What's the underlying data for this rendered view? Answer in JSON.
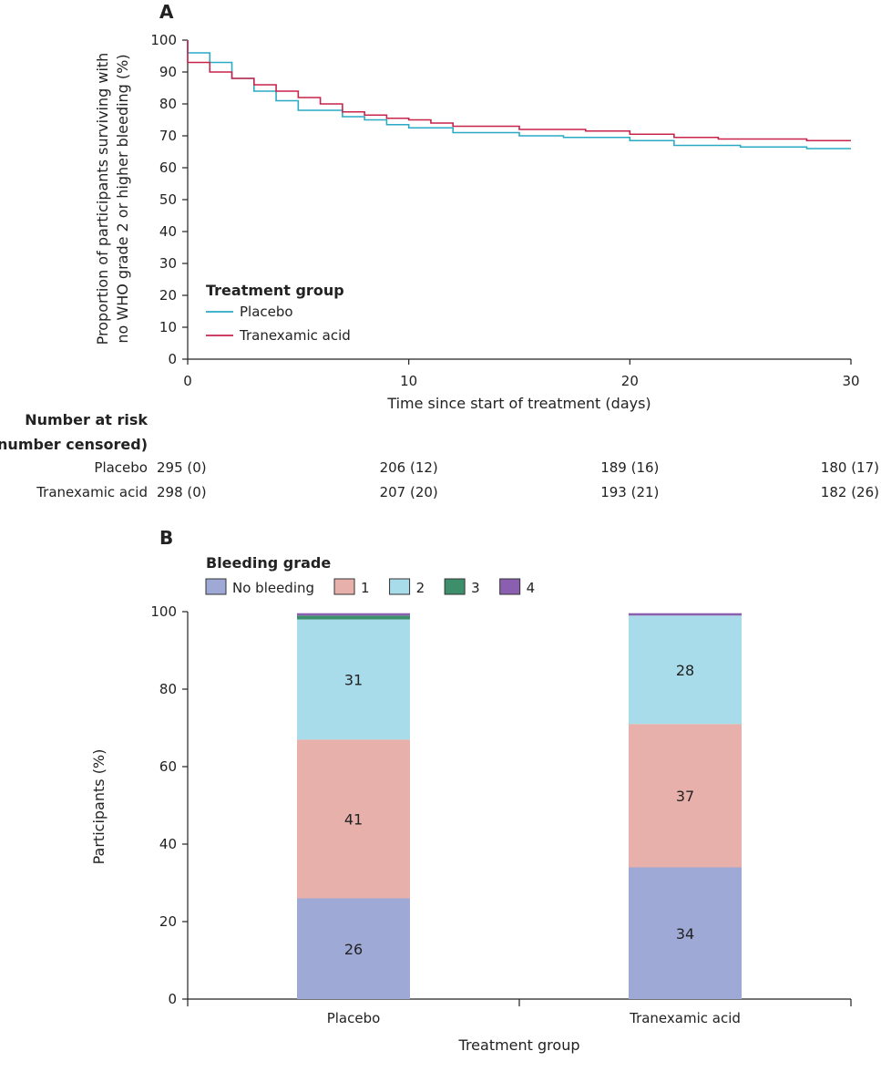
{
  "chart_data": [
    {
      "type": "line",
      "panel_label": "A",
      "xlabel": "Time since start of treatment (days)",
      "ylabel_lines": [
        "Proportion of participants surviving with",
        "no WHO grade 2 or higher bleeding (%)"
      ],
      "xlim": [
        0,
        30
      ],
      "ylim": [
        0,
        100
      ],
      "xticks": [
        "0",
        "10",
        "20",
        "30"
      ],
      "yticks": [
        "0",
        "10",
        "20",
        "30",
        "40",
        "50",
        "60",
        "70",
        "80",
        "90",
        "100"
      ],
      "legend_title": "Treatment group",
      "legend_position": "lower-left",
      "series": [
        {
          "name": "Placebo",
          "color": "#2aaac5",
          "x": [
            0,
            1,
            2,
            3,
            4,
            5,
            7,
            8,
            9,
            10,
            12,
            15,
            17,
            20,
            22,
            25,
            28,
            30
          ],
          "y": [
            96,
            93,
            88,
            84,
            81,
            78,
            76,
            75,
            73.5,
            72.5,
            71,
            70,
            69.5,
            68.5,
            67,
            66.5,
            66,
            66
          ]
        },
        {
          "name": "Tranexamic acid",
          "color": "#c8244b",
          "x": [
            0,
            1,
            2,
            3,
            4,
            5,
            6,
            7,
            8,
            9,
            10,
            11,
            12,
            15,
            18,
            20,
            22,
            24,
            26,
            28,
            30
          ],
          "y": [
            93,
            90,
            88,
            86,
            84,
            82,
            80,
            77.5,
            76.5,
            75.5,
            75,
            74,
            73,
            72,
            71.5,
            70.5,
            69.5,
            69,
            69,
            68.5,
            68.5
          ]
        }
      ],
      "risk_table": {
        "title_lines": [
          "Number at risk",
          "(number censored)"
        ],
        "rows": [
          {
            "label": "Placebo",
            "values": [
              "295 (0)",
              "206 (12)",
              "189 (16)",
              "180 (17)"
            ]
          },
          {
            "label": "Tranexamic acid",
            "values": [
              "298 (0)",
              "207 (20)",
              "193 (21)",
              "182 (26)"
            ]
          }
        ]
      }
    },
    {
      "type": "bar",
      "stacked": true,
      "panel_label": "B",
      "xlabel": "Treatment group",
      "ylabel": "Participants (%)",
      "ylim": [
        0,
        100
      ],
      "yticks": [
        "0",
        "20",
        "40",
        "60",
        "80",
        "100"
      ],
      "categories": [
        "Placebo",
        "Tranexamic acid"
      ],
      "legend_title": "Bleeding grade",
      "legend_position": "top-left",
      "series": [
        {
          "name": "No bleeding",
          "color": "#9ea9d5",
          "values": [
            26,
            34
          ],
          "labels": [
            "26",
            "34"
          ]
        },
        {
          "name": "1",
          "color": "#e8b0aa",
          "values": [
            41,
            37
          ],
          "labels": [
            "41",
            "37"
          ]
        },
        {
          "name": "2",
          "color": "#a9dcea",
          "values": [
            31,
            28
          ],
          "labels": [
            "31",
            "28"
          ]
        },
        {
          "name": "3",
          "color": "#3c8f6a",
          "values": [
            1,
            0
          ],
          "labels": [
            "",
            ""
          ]
        },
        {
          "name": "4",
          "color": "#8a5fb0",
          "values": [
            0.6,
            0.6
          ],
          "labels": [
            "",
            ""
          ]
        }
      ]
    }
  ]
}
